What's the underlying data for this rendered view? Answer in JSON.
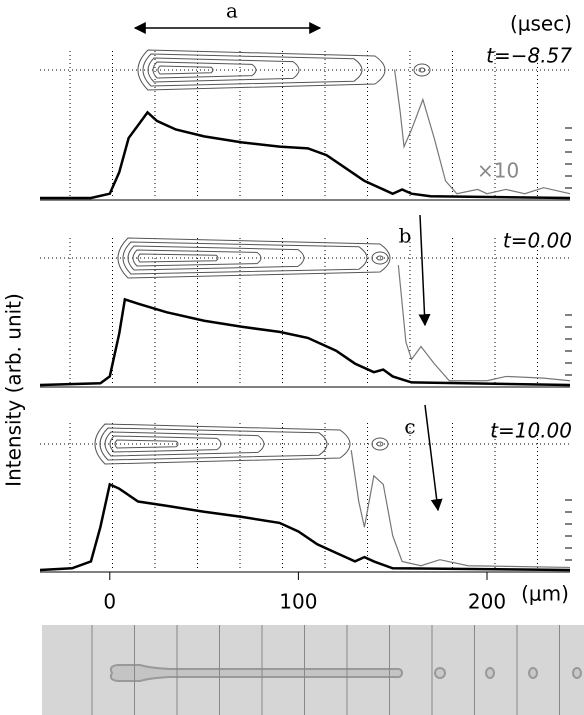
{
  "chart_data": [
    {
      "type": "line",
      "title": "t=−8.57",
      "unit": "(μsec)",
      "annotations": [
        "a"
      ],
      "xlim": [
        -37,
        244
      ],
      "ylim": [
        0,
        1.6
      ],
      "series": [
        {
          "color": "#000000",
          "x": [
            -37,
            -10,
            0,
            5,
            10,
            15,
            20,
            25,
            35,
            50,
            70,
            90,
            105,
            115,
            125,
            135,
            145,
            150,
            155,
            160,
            170,
            244
          ],
          "values": [
            0,
            0,
            0.05,
            0.3,
            0.7,
            0.85,
            1.0,
            0.9,
            0.8,
            0.72,
            0.65,
            0.6,
            0.58,
            0.5,
            0.35,
            0.2,
            0.1,
            0.05,
            0.1,
            0.05,
            0.02,
            0
          ]
        },
        {
          "name": "×10",
          "color": "#777777",
          "x": [
            151,
            154,
            156,
            160,
            166,
            172,
            178,
            184,
            195,
            200,
            210,
            220,
            230,
            244
          ],
          "values": [
            1.5,
            1.0,
            0.6,
            0.8,
            1.15,
            0.7,
            0.2,
            0.05,
            0.1,
            0.05,
            0.1,
            0.05,
            0.12,
            0.05
          ]
        }
      ]
    },
    {
      "type": "line",
      "title": "t=0.00",
      "annotations": [
        "b"
      ],
      "y_label": "Intensity (arb. unit)",
      "xlim": [
        -37,
        244
      ],
      "ylim": [
        0,
        1.6
      ],
      "series": [
        {
          "color": "#000000",
          "x": [
            -37,
            -5,
            0,
            5,
            8,
            15,
            30,
            50,
            70,
            90,
            105,
            120,
            130,
            140,
            145,
            150,
            160,
            244
          ],
          "values": [
            0,
            0.02,
            0.1,
            0.6,
            1.0,
            0.95,
            0.85,
            0.75,
            0.68,
            0.62,
            0.55,
            0.4,
            0.25,
            0.15,
            0.18,
            0.1,
            0.03,
            0
          ]
        },
        {
          "color": "#777777",
          "x": [
            153,
            157,
            160,
            165,
            172,
            180,
            200,
            210,
            230,
            244
          ],
          "values": [
            1.4,
            0.5,
            0.3,
            0.45,
            0.25,
            0.05,
            0.05,
            0.1,
            0.08,
            0.05
          ]
        }
      ]
    },
    {
      "type": "line",
      "title": "t=10.00",
      "annotations": [
        "c"
      ],
      "x_label": "(μm)",
      "xlim": [
        -37,
        244
      ],
      "ylim": [
        0,
        1.6
      ],
      "xticks": [
        0,
        100,
        200
      ],
      "series": [
        {
          "color": "#000000",
          "x": [
            -37,
            -20,
            -10,
            -5,
            0,
            5,
            15,
            30,
            50,
            70,
            90,
            100,
            110,
            120,
            130,
            135,
            140,
            150,
            244
          ],
          "values": [
            0,
            0.02,
            0.1,
            0.5,
            1.0,
            0.95,
            0.8,
            0.75,
            0.68,
            0.62,
            0.55,
            0.45,
            0.3,
            0.2,
            0.1,
            0.15,
            0.1,
            0.02,
            0
          ]
        },
        {
          "color": "#777777",
          "x": [
            128,
            132,
            135,
            140,
            145,
            150,
            155,
            165,
            175,
            190,
            244
          ],
          "values": [
            1.4,
            0.8,
            0.5,
            1.1,
            1.0,
            0.4,
            0.1,
            0.05,
            0.12,
            0.05,
            0.03
          ]
        }
      ]
    }
  ]
}
